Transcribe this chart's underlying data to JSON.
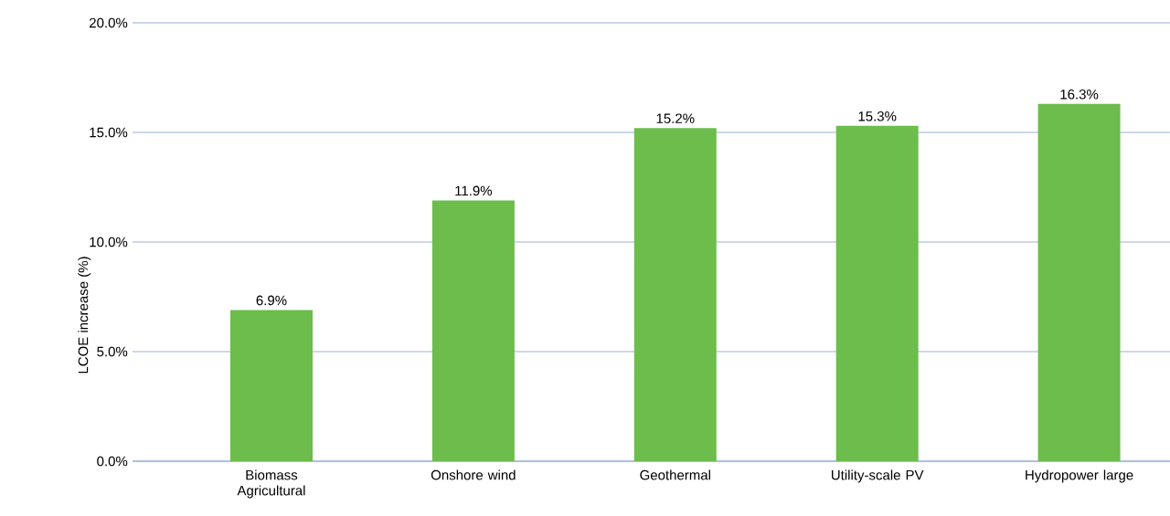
{
  "chart_data": {
    "type": "bar",
    "ylabel": "LCOE increase (%)",
    "categories": [
      "Biomass Agricultural",
      "Onshore wind",
      "Geothermal",
      "Utility-scale PV",
      "Hydropower large"
    ],
    "values": [
      6.9,
      11.9,
      15.2,
      15.3,
      16.3
    ],
    "value_labels": [
      "6.9%",
      "11.9%",
      "15.2%",
      "15.3%",
      "16.3%"
    ],
    "color": "#6cbd4b",
    "ylim": [
      0,
      20
    ],
    "yticks": [
      {
        "value": 0,
        "label": "0.0%"
      },
      {
        "value": 5,
        "label": "5.0%"
      },
      {
        "value": 10,
        "label": "10.0%"
      },
      {
        "value": 15,
        "label": "15.0%"
      },
      {
        "value": 20,
        "label": "20.0%"
      }
    ],
    "grid": "y"
  }
}
